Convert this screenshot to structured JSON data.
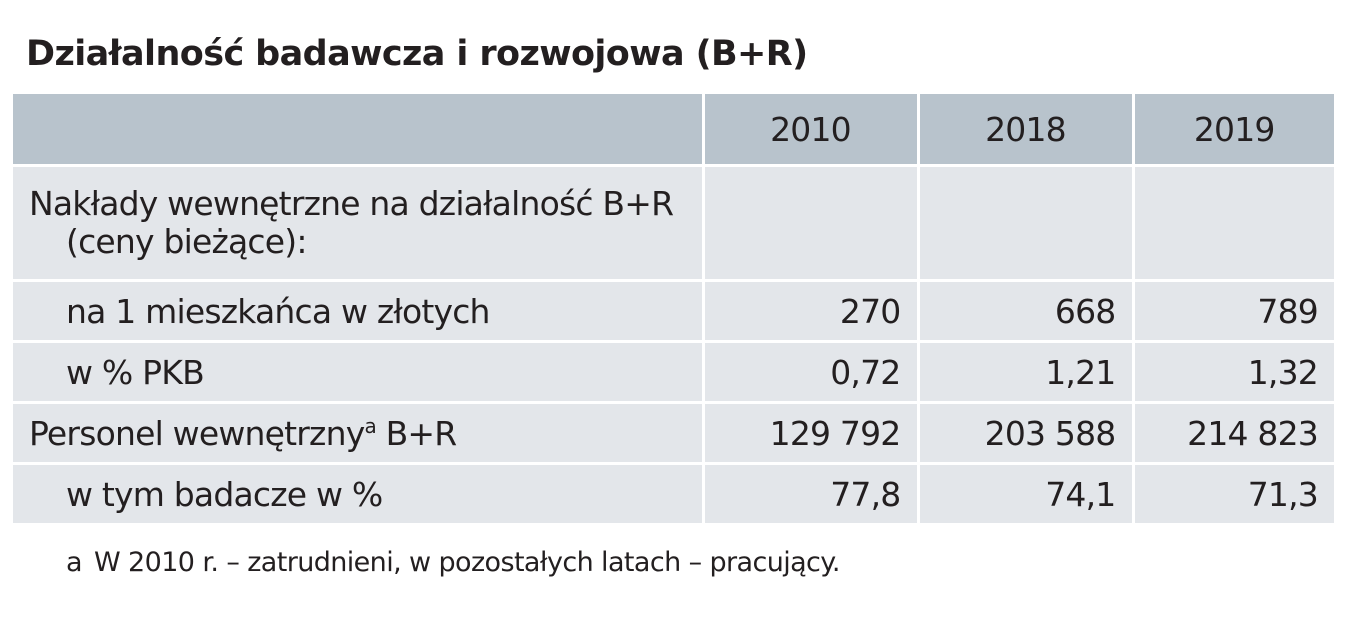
{
  "title": "Działalność badawcza i rozwojowa (B+R)",
  "table": {
    "headers": [
      "",
      "2010",
      "2018",
      "2019"
    ],
    "rows": [
      {
        "label_line1": "Nakłady wewnętrzne na działalność B+R",
        "label_line2": "(ceny bieżące):",
        "values": [
          "",
          "",
          ""
        ]
      },
      {
        "label": "na 1 mieszkańca w złotych",
        "values": [
          "270",
          "668",
          "789"
        ]
      },
      {
        "label": "w % PKB",
        "values": [
          "0,72",
          "1,21",
          "1,32"
        ]
      },
      {
        "label": "Personel wewnętrzny",
        "label_sup": "a",
        "label_suffix": " B+R",
        "values": [
          "129 792",
          "203 588",
          "214 823"
        ]
      },
      {
        "label": "w tym badacze w %",
        "values": [
          "77,8",
          "74,1",
          "71,3"
        ]
      }
    ]
  },
  "footnote": {
    "mark": "a",
    "text": "W 2010 r. – zatrudnieni, w pozostałych latach – pracujący."
  },
  "colors": {
    "header_bg": "#b8c3cc",
    "cell_bg": "#e3e6ea",
    "text": "#231f20"
  }
}
